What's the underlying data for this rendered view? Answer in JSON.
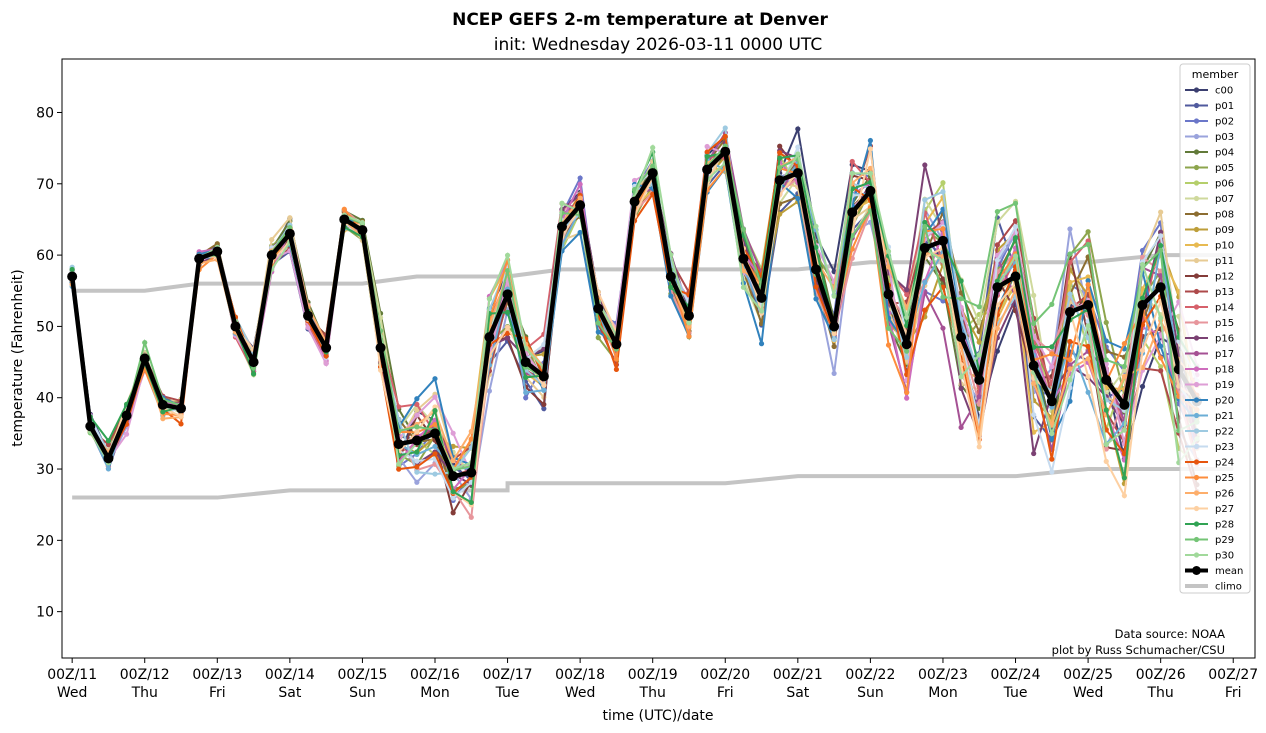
{
  "chart_data": {
    "type": "line",
    "title": "NCEP GEFS 2-m temperature at Denver",
    "subtitle": "init: Wednesday 2026-03-11 0000 UTC",
    "xlabel": "time (UTC)/date",
    "ylabel": "temperature (Fahrenheit)",
    "xlim": [
      -0.14,
      16.3
    ],
    "ylim": [
      3.5,
      87.5
    ],
    "yticks": [
      10,
      20,
      30,
      40,
      50,
      60,
      70,
      80
    ],
    "xticks": [
      {
        "x": 0,
        "label": "00Z/11",
        "day": "Wed"
      },
      {
        "x": 1,
        "label": "00Z/12",
        "day": "Thu"
      },
      {
        "x": 2,
        "label": "00Z/13",
        "day": "Fri"
      },
      {
        "x": 3,
        "label": "00Z/14",
        "day": "Sat"
      },
      {
        "x": 4,
        "label": "00Z/15",
        "day": "Sun"
      },
      {
        "x": 5,
        "label": "00Z/16",
        "day": "Mon"
      },
      {
        "x": 6,
        "label": "00Z/17",
        "day": "Tue"
      },
      {
        "x": 7,
        "label": "00Z/18",
        "day": "Wed"
      },
      {
        "x": 8,
        "label": "00Z/19",
        "day": "Thu"
      },
      {
        "x": 9,
        "label": "00Z/20",
        "day": "Fri"
      },
      {
        "x": 10,
        "label": "00Z/21",
        "day": "Sat"
      },
      {
        "x": 11,
        "label": "00Z/22",
        "day": "Sun"
      },
      {
        "x": 12,
        "label": "00Z/23",
        "day": "Mon"
      },
      {
        "x": 13,
        "label": "00Z/24",
        "day": "Tue"
      },
      {
        "x": 14,
        "label": "00Z/25",
        "day": "Wed"
      },
      {
        "x": 15,
        "label": "00Z/26",
        "day": "Thu"
      },
      {
        "x": 16,
        "label": "00Z/27",
        "day": "Fri"
      }
    ],
    "x_step_days": 0.25,
    "legend": {
      "title": "member",
      "position": "top-right"
    },
    "mean": {
      "name": "mean",
      "color": "#000000",
      "values": [
        57,
        36,
        31.5,
        37.5,
        45.5,
        39,
        38.5,
        59.5,
        60.5,
        50,
        45,
        60,
        63,
        51.5,
        47,
        65,
        63.5,
        47,
        33.5,
        34,
        35,
        29,
        29.5,
        48.5,
        54.5,
        45,
        43,
        64,
        67,
        52.5,
        47.5,
        67.5,
        71.5,
        57,
        51.5,
        72,
        74.5,
        59.5,
        54,
        70.5,
        71.5,
        58,
        50,
        66,
        69,
        54.5,
        47.5,
        61,
        62,
        48.5,
        42.5,
        55.5,
        57,
        44.5,
        39.5,
        52,
        53,
        42.5,
        39,
        53,
        55.5,
        44,
        39.5
      ]
    },
    "climo": [
      {
        "name": "climo",
        "color": "#c4c4c4",
        "values": [
          [
            0,
            55
          ],
          [
            1,
            55
          ],
          [
            1.75,
            56
          ],
          [
            4,
            56
          ],
          [
            4.75,
            57
          ],
          [
            6,
            57
          ],
          [
            6.75,
            58
          ],
          [
            10,
            58
          ],
          [
            11,
            59
          ],
          [
            13,
            59
          ],
          [
            14,
            59
          ],
          [
            15,
            60
          ],
          [
            16,
            60
          ]
        ]
      },
      {
        "name": "climo-low",
        "color": "#c4c4c4",
        "values": [
          [
            0,
            26
          ],
          [
            2,
            26
          ],
          [
            3,
            27
          ],
          [
            6,
            27
          ],
          [
            6,
            28
          ],
          [
            9,
            28
          ],
          [
            10,
            29
          ],
          [
            13,
            29
          ],
          [
            14,
            30
          ],
          [
            16,
            30
          ]
        ]
      }
    ],
    "spread_envelope": [
      1.5,
      2,
      2,
      2,
      2,
      1.5,
      1.5,
      1,
      1,
      1.5,
      2,
      2,
      2,
      1.5,
      2,
      1.5,
      1.5,
      4,
      5,
      6,
      6,
      5,
      5,
      6,
      6,
      5,
      5,
      3,
      3,
      3,
      3,
      3,
      3,
      3,
      3,
      3,
      3,
      4,
      4,
      5,
      5,
      6,
      6,
      7,
      7,
      7,
      7,
      9,
      9,
      9,
      9,
      9,
      9,
      10,
      10,
      11,
      11,
      11,
      11,
      11,
      11,
      12,
      12
    ],
    "series": [
      {
        "name": "c00",
        "color": "#3b3f70",
        "seed": 1
      },
      {
        "name": "p01",
        "color": "#505a9e",
        "seed": 2
      },
      {
        "name": "p02",
        "color": "#6b77c9",
        "seed": 3
      },
      {
        "name": "p03",
        "color": "#9aa3dc",
        "seed": 4
      },
      {
        "name": "p04",
        "color": "#627a39",
        "seed": 5
      },
      {
        "name": "p05",
        "color": "#8da54d",
        "seed": 6
      },
      {
        "name": "p06",
        "color": "#b5cf6b",
        "seed": 7
      },
      {
        "name": "p07",
        "color": "#cfd99c",
        "seed": 8
      },
      {
        "name": "p08",
        "color": "#8c6d31",
        "seed": 9
      },
      {
        "name": "p09",
        "color": "#bd9e39",
        "seed": 10
      },
      {
        "name": "p10",
        "color": "#e7ba52",
        "seed": 11
      },
      {
        "name": "p11",
        "color": "#e7cb94",
        "seed": 12
      },
      {
        "name": "p12",
        "color": "#843c39",
        "seed": 13
      },
      {
        "name": "p13",
        "color": "#ad494a",
        "seed": 14
      },
      {
        "name": "p14",
        "color": "#d6616b",
        "seed": 15
      },
      {
        "name": "p15",
        "color": "#e7969c",
        "seed": 16
      },
      {
        "name": "p16",
        "color": "#7b4173",
        "seed": 17
      },
      {
        "name": "p17",
        "color": "#a55194",
        "seed": 18
      },
      {
        "name": "p18",
        "color": "#ce6dbd",
        "seed": 19
      },
      {
        "name": "p19",
        "color": "#de9ed6",
        "seed": 20
      },
      {
        "name": "p20",
        "color": "#3182bd",
        "seed": 21
      },
      {
        "name": "p21",
        "color": "#6baed6",
        "seed": 22
      },
      {
        "name": "p22",
        "color": "#9ecae1",
        "seed": 23
      },
      {
        "name": "p23",
        "color": "#c6dbef",
        "seed": 24
      },
      {
        "name": "p24",
        "color": "#e6550d",
        "seed": 25
      },
      {
        "name": "p25",
        "color": "#fd8d3c",
        "seed": 26
      },
      {
        "name": "p26",
        "color": "#fdae6b",
        "seed": 27
      },
      {
        "name": "p27",
        "color": "#fdd0a2",
        "seed": 28
      },
      {
        "name": "p28",
        "color": "#31a354",
        "seed": 29
      },
      {
        "name": "p29",
        "color": "#74c476",
        "seed": 30
      },
      {
        "name": "p30",
        "color": "#a1d99b",
        "seed": 31
      }
    ],
    "annotations": [
      "Data source: NOAA",
      "plot by Russ Schumacher/CSU"
    ]
  }
}
